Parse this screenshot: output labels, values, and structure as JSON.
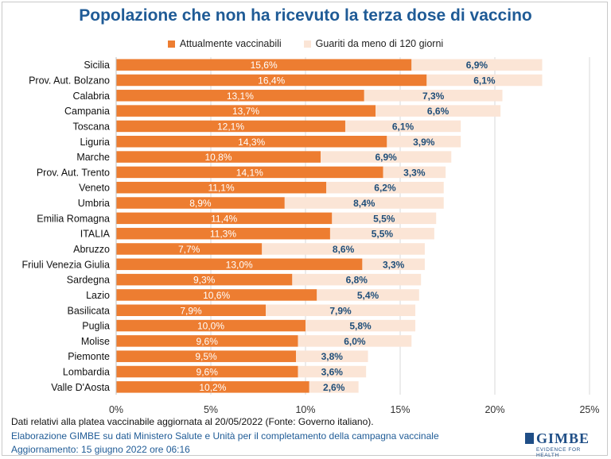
{
  "chart_data": {
    "type": "bar",
    "orientation": "horizontal",
    "stacked": true,
    "title": "Popolazione che non ha ricevuto la terza dose di vaccino",
    "legend_position": "top",
    "categories": [
      "Sicilia",
      "Prov. Aut. Bolzano",
      "Calabria",
      "Campania",
      "Toscana",
      "Liguria",
      "Marche",
      "Prov. Aut. Trento",
      "Veneto",
      "Umbria",
      "Emilia Romagna",
      "ITALIA",
      "Abruzzo",
      "Friuli Venezia Giulia",
      "Sardegna",
      "Lazio",
      "Basilicata",
      "Puglia",
      "Molise",
      "Piemonte",
      "Lombardia",
      "Valle D'Aosta"
    ],
    "series": [
      {
        "name": "Attualmente vaccinabili",
        "color": "#ed7d31",
        "values": [
          15.6,
          16.4,
          13.1,
          13.7,
          12.1,
          14.3,
          10.8,
          14.1,
          11.1,
          8.9,
          11.4,
          11.3,
          7.7,
          13.0,
          9.3,
          10.6,
          7.9,
          10.0,
          9.6,
          9.5,
          9.6,
          10.2
        ],
        "labels": [
          "15,6%",
          "16,4%",
          "13,1%",
          "13,7%",
          "12,1%",
          "14,3%",
          "10,8%",
          "14,1%",
          "11,1%",
          "8,9%",
          "11,4%",
          "11,3%",
          "7,7%",
          "13,0%",
          "9,3%",
          "10,6%",
          "7,9%",
          "10,0%",
          "9,6%",
          "9,5%",
          "9,6%",
          "10,2%"
        ]
      },
      {
        "name": "Guariti da meno di 120 giorni",
        "color": "#fbe5d6",
        "values": [
          6.9,
          6.1,
          7.3,
          6.6,
          6.1,
          3.9,
          6.9,
          3.3,
          6.2,
          8.4,
          5.5,
          5.5,
          8.6,
          3.3,
          6.8,
          5.4,
          7.9,
          5.8,
          6.0,
          3.8,
          3.6,
          2.6
        ],
        "labels": [
          "6,9%",
          "6,1%",
          "7,3%",
          "6,6%",
          "6,1%",
          "3,9%",
          "6,9%",
          "3,3%",
          "6,2%",
          "8,4%",
          "5,5%",
          "5,5%",
          "8,6%",
          "3,3%",
          "6,8%",
          "5,4%",
          "7,9%",
          "5,8%",
          "6,0%",
          "3,8%",
          "3,6%",
          "2,6%"
        ]
      }
    ],
    "xlim": [
      0,
      25
    ],
    "x_ticks": [
      "0%",
      "5%",
      "10%",
      "15%",
      "20%",
      "25%"
    ],
    "grid": true,
    "xlabel": "",
    "ylabel": ""
  },
  "footer": {
    "note": "Dati relativi alla platea vaccinabile aggiornata al 20/05/2022 (Fonte: Governo italiano).",
    "source": "Elaborazione GIMBE su dati Ministero Salute e Unità per il completamento della campagna vaccinale",
    "updated": "Aggiornamento: 15 giugno 2022 ore 06:16"
  },
  "logo": {
    "word": "GIMBE",
    "tagline": "EVIDENCE FOR HEALTH"
  }
}
